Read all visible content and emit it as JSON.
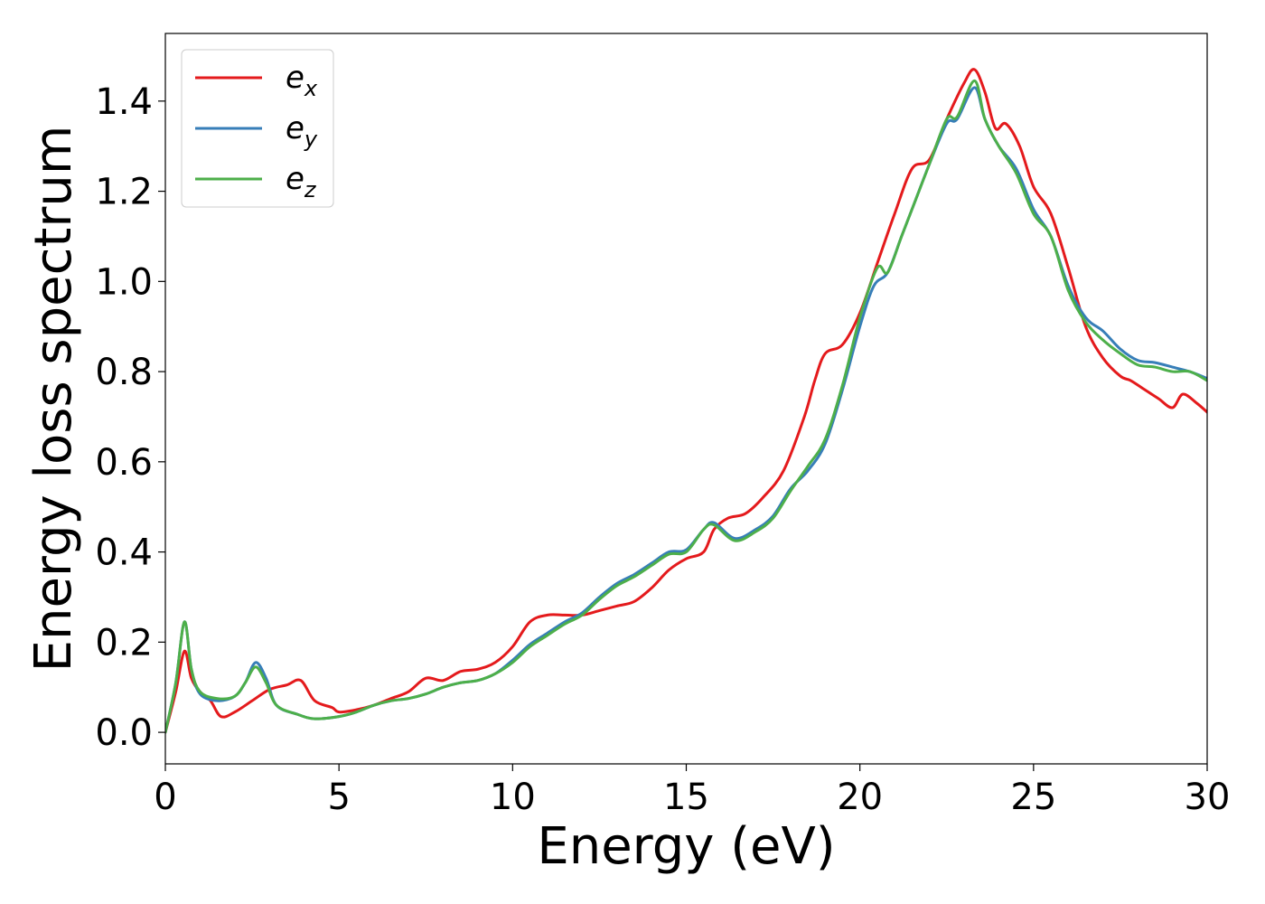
{
  "chart_data": {
    "type": "line",
    "title": "",
    "xlabel": "Energy (eV)",
    "ylabel": "Energy loss spectrum",
    "xlim": [
      0,
      30
    ],
    "ylim": [
      -0.07,
      1.55
    ],
    "xticks": [
      0,
      5,
      10,
      15,
      20,
      25,
      30
    ],
    "yticks": [
      0.0,
      0.2,
      0.4,
      0.6,
      0.8,
      1.0,
      1.2,
      1.4
    ],
    "ytick_labels": [
      "0.0",
      "0.2",
      "0.4",
      "0.6",
      "0.8",
      "1.0",
      "1.2",
      "1.4"
    ],
    "grid": false,
    "legend_position": "top-left",
    "series": [
      {
        "name_base": "e",
        "name_sub": "x",
        "color": "#e41a1c",
        "points": [
          [
            0,
            0
          ],
          [
            0.3,
            0.09
          ],
          [
            0.55,
            0.18
          ],
          [
            0.75,
            0.12
          ],
          [
            1.0,
            0.09
          ],
          [
            1.3,
            0.07
          ],
          [
            1.6,
            0.035
          ],
          [
            2.0,
            0.045
          ],
          [
            2.5,
            0.07
          ],
          [
            3.0,
            0.095
          ],
          [
            3.5,
            0.105
          ],
          [
            3.9,
            0.115
          ],
          [
            4.3,
            0.07
          ],
          [
            4.8,
            0.055
          ],
          [
            5.0,
            0.045
          ],
          [
            5.5,
            0.05
          ],
          [
            6.0,
            0.06
          ],
          [
            6.5,
            0.075
          ],
          [
            7.0,
            0.09
          ],
          [
            7.5,
            0.12
          ],
          [
            8.0,
            0.115
          ],
          [
            8.5,
            0.135
          ],
          [
            9.0,
            0.14
          ],
          [
            9.5,
            0.155
          ],
          [
            10.0,
            0.19
          ],
          [
            10.5,
            0.245
          ],
          [
            11.0,
            0.26
          ],
          [
            11.5,
            0.26
          ],
          [
            12.0,
            0.26
          ],
          [
            12.5,
            0.27
          ],
          [
            13.0,
            0.28
          ],
          [
            13.5,
            0.29
          ],
          [
            14.0,
            0.32
          ],
          [
            14.5,
            0.36
          ],
          [
            15.0,
            0.385
          ],
          [
            15.5,
            0.4
          ],
          [
            15.8,
            0.45
          ],
          [
            16.2,
            0.475
          ],
          [
            16.7,
            0.485
          ],
          [
            17.2,
            0.52
          ],
          [
            17.8,
            0.58
          ],
          [
            18.4,
            0.7
          ],
          [
            18.7,
            0.78
          ],
          [
            19.0,
            0.84
          ],
          [
            19.5,
            0.86
          ],
          [
            20.0,
            0.93
          ],
          [
            20.5,
            1.04
          ],
          [
            21.0,
            1.15
          ],
          [
            21.5,
            1.25
          ],
          [
            22.0,
            1.27
          ],
          [
            22.5,
            1.36
          ],
          [
            23.0,
            1.44
          ],
          [
            23.3,
            1.47
          ],
          [
            23.6,
            1.42
          ],
          [
            23.9,
            1.34
          ],
          [
            24.2,
            1.35
          ],
          [
            24.6,
            1.3
          ],
          [
            25.0,
            1.21
          ],
          [
            25.5,
            1.15
          ],
          [
            26.0,
            1.03
          ],
          [
            26.5,
            0.9
          ],
          [
            27.0,
            0.83
          ],
          [
            27.5,
            0.79
          ],
          [
            27.8,
            0.78
          ],
          [
            28.2,
            0.76
          ],
          [
            28.6,
            0.74
          ],
          [
            29.0,
            0.72
          ],
          [
            29.3,
            0.75
          ],
          [
            29.7,
            0.73
          ],
          [
            30.0,
            0.71
          ]
        ]
      },
      {
        "name_base": "e",
        "name_sub": "y",
        "color": "#377eb8",
        "points": [
          [
            0,
            0
          ],
          [
            0.3,
            0.11
          ],
          [
            0.55,
            0.245
          ],
          [
            0.75,
            0.14
          ],
          [
            1.0,
            0.085
          ],
          [
            1.5,
            0.07
          ],
          [
            2.0,
            0.08
          ],
          [
            2.3,
            0.11
          ],
          [
            2.6,
            0.155
          ],
          [
            2.9,
            0.12
          ],
          [
            3.2,
            0.06
          ],
          [
            3.8,
            0.04
          ],
          [
            4.3,
            0.03
          ],
          [
            5.0,
            0.035
          ],
          [
            5.5,
            0.045
          ],
          [
            6.0,
            0.06
          ],
          [
            6.5,
            0.07
          ],
          [
            7.0,
            0.075
          ],
          [
            7.5,
            0.085
          ],
          [
            8.0,
            0.1
          ],
          [
            8.5,
            0.11
          ],
          [
            9.0,
            0.115
          ],
          [
            9.5,
            0.13
          ],
          [
            10.0,
            0.16
          ],
          [
            10.5,
            0.195
          ],
          [
            11.0,
            0.22
          ],
          [
            11.5,
            0.245
          ],
          [
            12.0,
            0.265
          ],
          [
            12.5,
            0.3
          ],
          [
            13.0,
            0.33
          ],
          [
            13.5,
            0.35
          ],
          [
            14.0,
            0.375
          ],
          [
            14.5,
            0.4
          ],
          [
            15.0,
            0.405
          ],
          [
            15.5,
            0.45
          ],
          [
            15.8,
            0.465
          ],
          [
            16.4,
            0.43
          ],
          [
            17.0,
            0.45
          ],
          [
            17.5,
            0.48
          ],
          [
            18.0,
            0.54
          ],
          [
            18.5,
            0.58
          ],
          [
            19.0,
            0.64
          ],
          [
            19.5,
            0.76
          ],
          [
            20.0,
            0.9
          ],
          [
            20.4,
            0.99
          ],
          [
            20.8,
            1.02
          ],
          [
            21.2,
            1.1
          ],
          [
            21.6,
            1.18
          ],
          [
            22.0,
            1.26
          ],
          [
            22.5,
            1.35
          ],
          [
            22.8,
            1.36
          ],
          [
            23.3,
            1.43
          ],
          [
            23.6,
            1.36
          ],
          [
            24.0,
            1.3
          ],
          [
            24.5,
            1.25
          ],
          [
            25.0,
            1.16
          ],
          [
            25.5,
            1.1
          ],
          [
            26.0,
            0.99
          ],
          [
            26.5,
            0.92
          ],
          [
            27.0,
            0.89
          ],
          [
            27.5,
            0.85
          ],
          [
            28.0,
            0.825
          ],
          [
            28.5,
            0.82
          ],
          [
            29.0,
            0.81
          ],
          [
            29.5,
            0.8
          ],
          [
            30.0,
            0.785
          ]
        ]
      },
      {
        "name_base": "e",
        "name_sub": "z",
        "color": "#4daf4a",
        "points": [
          [
            0,
            0
          ],
          [
            0.3,
            0.11
          ],
          [
            0.55,
            0.245
          ],
          [
            0.75,
            0.14
          ],
          [
            1.0,
            0.09
          ],
          [
            1.5,
            0.075
          ],
          [
            2.0,
            0.08
          ],
          [
            2.3,
            0.11
          ],
          [
            2.6,
            0.145
          ],
          [
            2.9,
            0.11
          ],
          [
            3.2,
            0.06
          ],
          [
            3.8,
            0.04
          ],
          [
            4.3,
            0.03
          ],
          [
            5.0,
            0.035
          ],
          [
            5.5,
            0.045
          ],
          [
            6.0,
            0.06
          ],
          [
            6.5,
            0.07
          ],
          [
            7.0,
            0.075
          ],
          [
            7.5,
            0.085
          ],
          [
            8.0,
            0.1
          ],
          [
            8.5,
            0.11
          ],
          [
            9.0,
            0.115
          ],
          [
            9.5,
            0.13
          ],
          [
            10.0,
            0.155
          ],
          [
            10.5,
            0.19
          ],
          [
            11.0,
            0.215
          ],
          [
            11.5,
            0.24
          ],
          [
            12.0,
            0.26
          ],
          [
            12.5,
            0.295
          ],
          [
            13.0,
            0.325
          ],
          [
            13.5,
            0.345
          ],
          [
            14.0,
            0.37
          ],
          [
            14.5,
            0.395
          ],
          [
            15.0,
            0.4
          ],
          [
            15.5,
            0.45
          ],
          [
            15.8,
            0.46
          ],
          [
            16.4,
            0.425
          ],
          [
            17.0,
            0.445
          ],
          [
            17.5,
            0.475
          ],
          [
            18.0,
            0.535
          ],
          [
            18.5,
            0.59
          ],
          [
            19.0,
            0.65
          ],
          [
            19.5,
            0.77
          ],
          [
            20.0,
            0.92
          ],
          [
            20.5,
            1.03
          ],
          [
            20.8,
            1.02
          ],
          [
            21.2,
            1.1
          ],
          [
            21.6,
            1.18
          ],
          [
            22.0,
            1.26
          ],
          [
            22.5,
            1.36
          ],
          [
            22.8,
            1.365
          ],
          [
            23.3,
            1.445
          ],
          [
            23.6,
            1.36
          ],
          [
            24.0,
            1.3
          ],
          [
            24.5,
            1.24
          ],
          [
            25.0,
            1.15
          ],
          [
            25.5,
            1.1
          ],
          [
            26.0,
            0.98
          ],
          [
            26.5,
            0.91
          ],
          [
            27.0,
            0.87
          ],
          [
            27.5,
            0.84
          ],
          [
            28.0,
            0.815
          ],
          [
            28.5,
            0.81
          ],
          [
            29.0,
            0.8
          ],
          [
            29.5,
            0.8
          ],
          [
            30.0,
            0.78
          ]
        ]
      }
    ]
  }
}
